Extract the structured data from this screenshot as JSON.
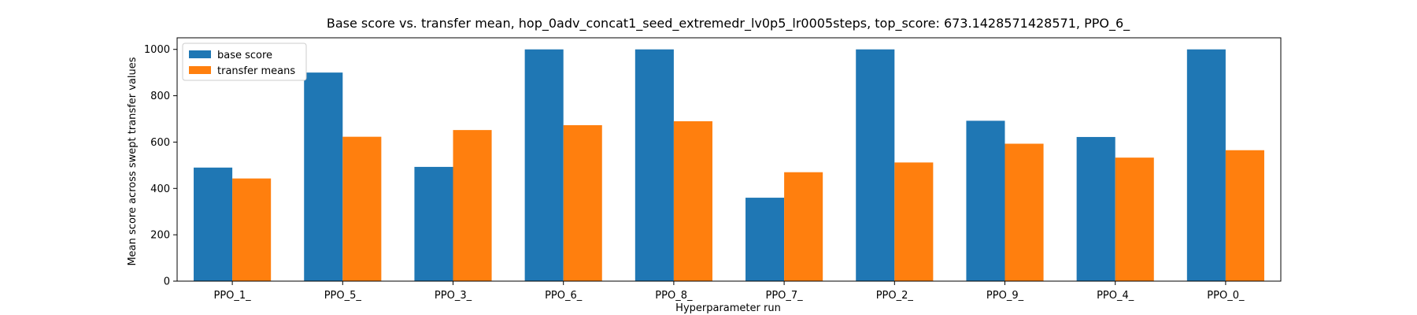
{
  "chart_data": {
    "type": "bar",
    "title": "Base score vs. transfer mean, hop_0adv_concat1_seed_extremedr_lv0p5_lr0005steps, top_score: 673.1428571428571, PPO_6_",
    "xlabel": "Hyperparameter run",
    "ylabel": "Mean score across swept transfer values",
    "categories": [
      "PPO_1_",
      "PPO_5_",
      "PPO_3_",
      "PPO_6_",
      "PPO_8_",
      "PPO_7_",
      "PPO_2_",
      "PPO_9_",
      "PPO_4_",
      "PPO_0_"
    ],
    "series": [
      {
        "name": "base score",
        "color": "#1f77b4",
        "values": [
          490,
          900,
          493,
          1000,
          1000,
          360,
          1000,
          692,
          622,
          1000
        ]
      },
      {
        "name": "transfer means",
        "color": "#ff7f0e",
        "values": [
          443,
          623,
          652,
          673,
          690,
          470,
          512,
          593,
          533,
          565
        ]
      }
    ],
    "ylim": [
      0,
      1050
    ],
    "yticks": [
      0,
      200,
      400,
      600,
      800,
      1000
    ],
    "grid": false,
    "legend_position": "top-left"
  }
}
